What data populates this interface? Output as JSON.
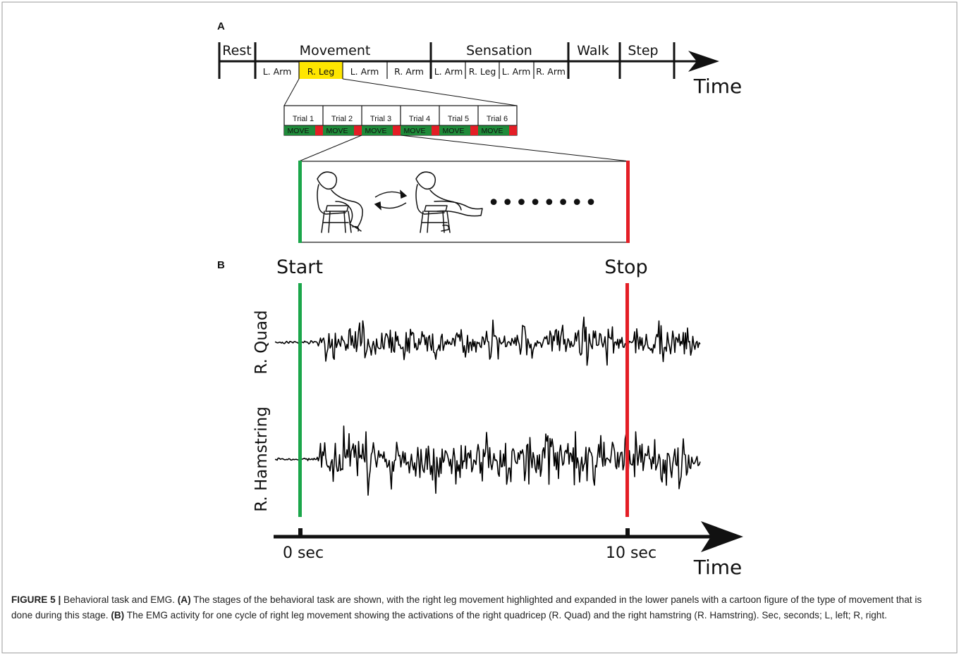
{
  "panel_labels": {
    "a": "A",
    "b": "B"
  },
  "timeline": {
    "stages": [
      "Rest",
      "Movement",
      "Sensation",
      "Walk",
      "Step"
    ],
    "substages": [
      "L. Arm",
      "R. Leg",
      "L. Arm",
      "R. Arm",
      "L. Arm",
      "R. Leg",
      "L. Arm",
      "R. Arm"
    ],
    "highlighted_substage": "R. Leg",
    "highlight_color": "#FFE600",
    "axis_label": "Time"
  },
  "trials": {
    "labels": [
      "Trial 1",
      "Trial 2",
      "Trial 3",
      "Trial 4",
      "Trial 5",
      "Trial 6"
    ],
    "move_label": "MOVE",
    "move_color": "#1F8B3A",
    "stop_color": "#E41E26"
  },
  "cartoon": {
    "dots": "••••••••"
  },
  "emg": {
    "start_label": "Start",
    "stop_label": "Stop",
    "traces": [
      "R. Quad",
      "R. Hamstring"
    ],
    "start_color": "#1AA64A",
    "stop_color": "#E41E26",
    "ticks": [
      "0 sec",
      "10 sec"
    ],
    "axis_label": "Time"
  },
  "caption": {
    "figure_label": "FIGURE 5 |",
    "title": " Behavioral task and EMG. ",
    "a_label": "(A)",
    "a_text": " The stages of the behavioral task are shown, with the right leg movement highlighted and expanded in the lower panels with a cartoon figure of the type of movement that is done during this stage. ",
    "b_label": "(B)",
    "b_text": " The EMG activity for one cycle of right leg movement showing the activations of the right quadricep (R. Quad) and the right hamstring (R. Hamstring). Sec, seconds; L, left; R, right."
  }
}
